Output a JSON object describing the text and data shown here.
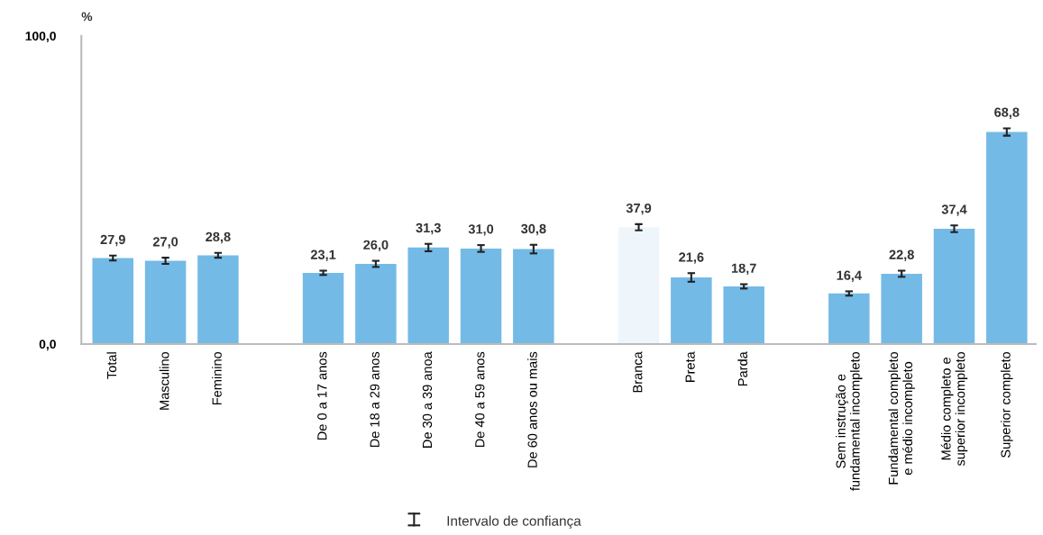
{
  "chart_data": {
    "type": "bar",
    "ylabel": "%",
    "categories": [
      "Total",
      "Masculino",
      "Feminino",
      null,
      "De 0 a 17 anos",
      "De 18 a 29 anos",
      "De 30 a 39 anoa",
      "De 40 a 59 anos",
      "De 60 anos ou mais",
      null,
      "Branca",
      "Preta",
      "Parda",
      null,
      "Sem instrução e\nfundamental incompleto",
      "Fundamental completo\ne médio incompleto",
      "Médio completo e\nsuperior incompleto",
      "Superior completo"
    ],
    "values": [
      27.9,
      27.0,
      28.8,
      null,
      23.1,
      26.0,
      31.3,
      31.0,
      30.8,
      null,
      37.9,
      21.6,
      18.7,
      null,
      16.4,
      22.8,
      37.4,
      68.8
    ],
    "errors": [
      0.8,
      1.0,
      0.8,
      null,
      0.7,
      1.0,
      1.2,
      1.1,
      1.4,
      null,
      1.0,
      1.4,
      0.7,
      null,
      0.7,
      1.0,
      1.1,
      1.2
    ],
    "value_labels": [
      "27,9",
      "27,0",
      "28,8",
      null,
      "23,1",
      "26,0",
      "31,3",
      "31,0",
      "30,8",
      null,
      "37,9",
      "21,6",
      "18,7",
      null,
      "16,4",
      "22,8",
      "37,4",
      "68,8"
    ],
    "colors": [
      "#74bae6",
      "#74bae6",
      "#74bae6",
      "#74bae6",
      "#74bae6",
      "#74bae6",
      "#74bae6",
      "#74bae6",
      "#74bae6",
      "#74bae6",
      "#eef6fc",
      "#74bae6",
      "#74bae6",
      "#74bae6",
      "#74bae6",
      "#74bae6",
      "#74bae6",
      "#74bae6"
    ],
    "ylim": [
      0,
      100
    ],
    "yticks": [
      {
        "value": 0,
        "label": "0,0"
      },
      {
        "value": 100,
        "label": "100,0"
      }
    ],
    "grid": false,
    "legend": false,
    "annotations": [
      "Intervalo de confiança"
    ]
  }
}
